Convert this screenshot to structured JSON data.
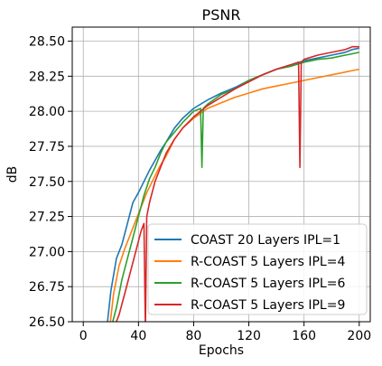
{
  "chart_data": {
    "type": "line",
    "title": "PSNR",
    "xlabel": "Epochs",
    "ylabel": "dB",
    "xlim": [
      -8,
      208
    ],
    "ylim": [
      26.5,
      28.6
    ],
    "xticks": [
      0,
      40,
      80,
      120,
      160,
      200
    ],
    "yticks": [
      26.5,
      26.75,
      27.0,
      27.25,
      27.5,
      27.75,
      28.0,
      28.25,
      28.5
    ],
    "ytick_labels": [
      "26.50",
      "26.75",
      "27.00",
      "27.25",
      "27.50",
      "27.75",
      "28.00",
      "28.25",
      "28.50"
    ],
    "grid": true,
    "legend_position": "lower right",
    "series": [
      {
        "name": "COAST 20 Layers IPL=1",
        "color": "#1f77b4",
        "x": [
          17,
          20,
          24,
          28,
          32,
          36,
          40,
          44,
          48,
          52,
          56,
          60,
          66,
          72,
          80,
          90,
          100,
          110,
          120,
          130,
          140,
          150,
          160,
          170,
          180,
          190,
          195,
          200
        ],
        "y": [
          26.45,
          26.72,
          26.95,
          27.05,
          27.2,
          27.35,
          27.42,
          27.5,
          27.58,
          27.65,
          27.72,
          27.78,
          27.88,
          27.95,
          28.02,
          28.08,
          28.13,
          28.17,
          28.22,
          28.26,
          28.3,
          28.33,
          28.36,
          28.38,
          28.4,
          28.42,
          28.44,
          28.45
        ]
      },
      {
        "name": "R-COAST 5 Layers IPL=4",
        "color": "#ff7f0e",
        "x": [
          19,
          22,
          26,
          30,
          34,
          38,
          42,
          46,
          50,
          55,
          60,
          66,
          72,
          80,
          90,
          100,
          110,
          120,
          130,
          140,
          150,
          160,
          170,
          180,
          190,
          195,
          200
        ],
        "y": [
          26.45,
          26.7,
          26.9,
          27.02,
          27.12,
          27.22,
          27.32,
          27.42,
          27.5,
          27.6,
          27.68,
          27.8,
          27.88,
          27.95,
          28.02,
          28.06,
          28.1,
          28.13,
          28.16,
          28.18,
          28.2,
          28.22,
          28.24,
          28.26,
          28.28,
          28.29,
          28.3
        ]
      },
      {
        "name": "R-COAST 5 Layers IPL=6",
        "color": "#2ca02c",
        "x": [
          20,
          24,
          28,
          32,
          36,
          40,
          44,
          48,
          52,
          56,
          60,
          66,
          72,
          80,
          85,
          86,
          87,
          90,
          100,
          110,
          120,
          130,
          140,
          150,
          160,
          170,
          180,
          190,
          195,
          200
        ],
        "y": [
          26.45,
          26.6,
          26.8,
          26.95,
          27.1,
          27.25,
          27.4,
          27.52,
          27.6,
          27.7,
          27.78,
          27.85,
          27.92,
          28.0,
          28.02,
          27.6,
          28.02,
          28.05,
          28.12,
          28.16,
          28.22,
          28.26,
          28.3,
          28.32,
          28.35,
          28.37,
          28.38,
          28.4,
          28.41,
          28.42
        ]
      },
      {
        "name": "R-COAST 5 Layers IPL=9",
        "color": "#d62728",
        "x": [
          22,
          26,
          30,
          34,
          38,
          42,
          44,
          45,
          46,
          48,
          52,
          56,
          60,
          66,
          72,
          80,
          90,
          100,
          110,
          120,
          130,
          140,
          150,
          156,
          157,
          158,
          160,
          170,
          180,
          190,
          195,
          200
        ],
        "y": [
          26.45,
          26.55,
          26.7,
          26.85,
          27.0,
          27.15,
          27.2,
          26.45,
          27.25,
          27.35,
          27.5,
          27.6,
          27.7,
          27.8,
          27.88,
          27.96,
          28.04,
          28.1,
          28.16,
          28.21,
          28.26,
          28.3,
          28.33,
          28.35,
          27.6,
          28.35,
          28.37,
          28.4,
          28.42,
          28.44,
          28.46,
          28.46
        ]
      }
    ]
  }
}
